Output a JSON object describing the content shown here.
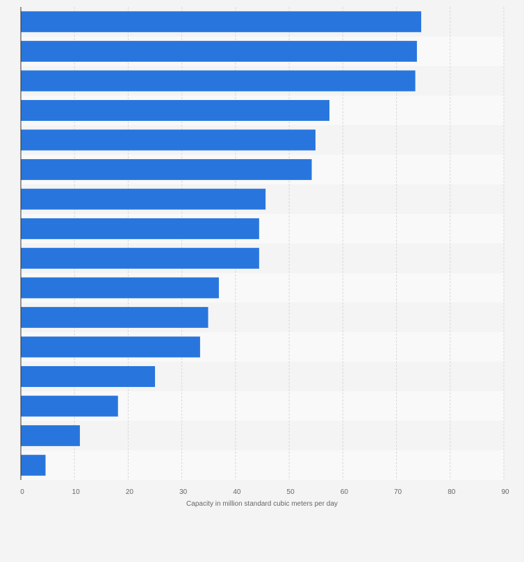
{
  "chart_data": {
    "type": "bar",
    "orientation": "horizontal",
    "values": [
      74.6,
      73.8,
      73.5,
      57.5,
      54.9,
      54.2,
      45.6,
      44.4,
      44.4,
      36.9,
      34.9,
      33.4,
      25.0,
      18.1,
      11.0,
      4.6
    ],
    "xlabel": "Capacity in million standard cubic meters per day",
    "xlim": [
      0,
      90
    ],
    "xticks": [
      "0",
      "10",
      "20",
      "30",
      "40",
      "50",
      "60",
      "70",
      "80",
      "90"
    ],
    "grid": true,
    "colors": {
      "bar": "#2876dd",
      "band_light": "#f9f9f9",
      "band_dark": "#f4f4f4",
      "grid": "#d8d8d8",
      "axis": "#333333"
    }
  }
}
